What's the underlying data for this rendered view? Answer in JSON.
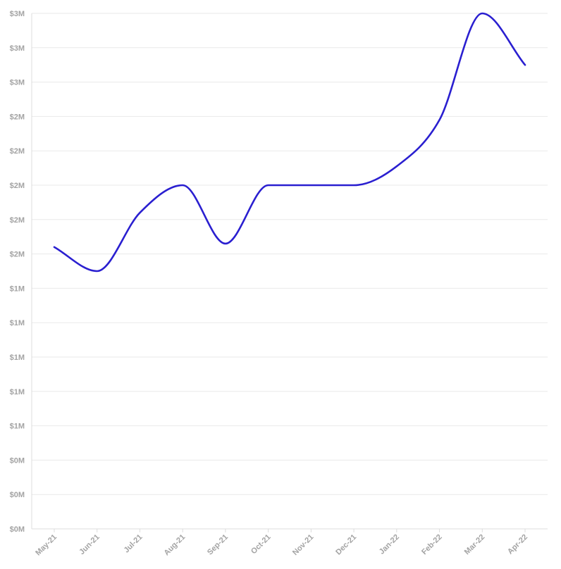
{
  "chart_data": {
    "type": "line",
    "title": "",
    "xlabel": "",
    "ylabel": "",
    "categories": [
      "May-21",
      "Jun-21",
      "Jul-21",
      "Aug-21",
      "Sep-21",
      "Oct-21",
      "Nov-21",
      "Dec-21",
      "Jan-22",
      "Feb-22",
      "Mar-22",
      "Apr-22"
    ],
    "y_tick_labels": [
      "$0M",
      "$0M",
      "$0M",
      "$1M",
      "$1M",
      "$1M",
      "$1M",
      "$1M",
      "$2M",
      "$2M",
      "$2M",
      "$2M",
      "$2M",
      "$3M",
      "$3M",
      "$3M"
    ],
    "ylim": [
      0,
      3.0
    ],
    "grid": true,
    "legend": "none",
    "series": [
      {
        "color": "#2a1fd0",
        "values": [
          1.64,
          1.5,
          1.84,
          2.0,
          1.66,
          2.0,
          2.0,
          2.0,
          2.11,
          2.38,
          3.0,
          2.7
        ]
      }
    ]
  }
}
